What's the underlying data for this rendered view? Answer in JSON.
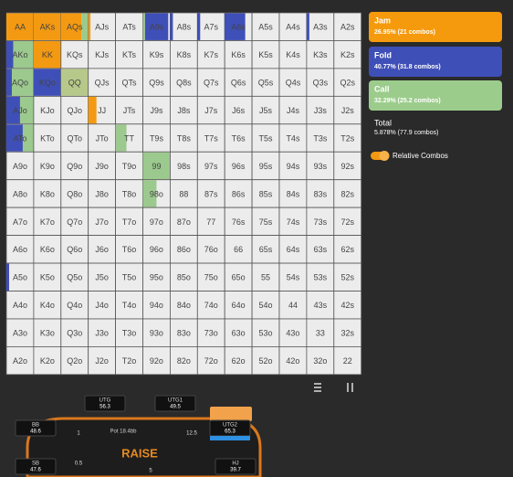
{
  "grid": {
    "rows": [
      [
        "AA",
        "AKs",
        "AQs",
        "AJs",
        "ATs",
        "A9s",
        "A8s",
        "A7s",
        "A6s",
        "A5s",
        "A4s",
        "A3s",
        "A2s"
      ],
      [
        "AKo",
        "KK",
        "KQs",
        "KJs",
        "KTs",
        "K9s",
        "K8s",
        "K7s",
        "K6s",
        "K5s",
        "K4s",
        "K3s",
        "K2s"
      ],
      [
        "AQo",
        "KQo",
        "QQ",
        "QJs",
        "QTs",
        "Q9s",
        "Q8s",
        "Q7s",
        "Q6s",
        "Q5s",
        "Q4s",
        "Q3s",
        "Q2s"
      ],
      [
        "AJo",
        "KJo",
        "QJo",
        "JJ",
        "JTs",
        "J9s",
        "J8s",
        "J7s",
        "J6s",
        "J5s",
        "J4s",
        "J3s",
        "J2s"
      ],
      [
        "ATo",
        "KTo",
        "QTo",
        "JTo",
        "TT",
        "T9s",
        "T8s",
        "T7s",
        "T6s",
        "T5s",
        "T4s",
        "T3s",
        "T2s"
      ],
      [
        "A9o",
        "K9o",
        "Q9o",
        "J9o",
        "T9o",
        "99",
        "98s",
        "97s",
        "96s",
        "95s",
        "94s",
        "93s",
        "92s"
      ],
      [
        "A8o",
        "K8o",
        "Q8o",
        "J8o",
        "T8o",
        "98o",
        "88",
        "87s",
        "86s",
        "85s",
        "84s",
        "83s",
        "82s"
      ],
      [
        "A7o",
        "K7o",
        "Q7o",
        "J7o",
        "T7o",
        "97o",
        "87o",
        "77",
        "76s",
        "75s",
        "74s",
        "73s",
        "72s"
      ],
      [
        "A6o",
        "K6o",
        "Q6o",
        "J6o",
        "T6o",
        "96o",
        "86o",
        "76o",
        "66",
        "65s",
        "64s",
        "63s",
        "62s"
      ],
      [
        "A5o",
        "K5o",
        "Q5o",
        "J5o",
        "T5o",
        "95o",
        "85o",
        "75o",
        "65o",
        "55",
        "54s",
        "53s",
        "52s"
      ],
      [
        "A4o",
        "K4o",
        "Q4o",
        "J4o",
        "T4o",
        "94o",
        "84o",
        "74o",
        "64o",
        "54o",
        "44",
        "43s",
        "42s"
      ],
      [
        "A3o",
        "K3o",
        "Q3o",
        "J3o",
        "T3o",
        "93o",
        "83o",
        "73o",
        "63o",
        "53o",
        "43o",
        "33",
        "32s"
      ],
      [
        "A2o",
        "K2o",
        "Q2o",
        "J2o",
        "T2o",
        "92o",
        "82o",
        "72o",
        "62o",
        "52o",
        "42o",
        "32o",
        "22"
      ]
    ]
  },
  "legend": [
    {
      "label": "Jam",
      "detail": "26.95% (21 combos)"
    },
    {
      "label": "Fold",
      "detail": "40.77% (31.8 combos)"
    },
    {
      "label": "Call",
      "detail": "32.29% (25.2 combos)"
    }
  ],
  "total": {
    "label": "Total",
    "detail": "5.878% (77.9 combos)"
  },
  "toggle": "Relative Combos",
  "table": {
    "pot": "Pot 18.4bb",
    "logo": "RAISE",
    "players": [
      {
        "position": "UTG",
        "stack": "56.3"
      },
      {
        "position": "UTG1",
        "stack": "49.5"
      },
      {
        "position": "BB",
        "stack": "48.6"
      },
      {
        "position": "UTG2",
        "stack": "65.3"
      },
      {
        "position": "SB",
        "stack": "47.6"
      },
      {
        "position": "HJ",
        "stack": "39.7"
      }
    ],
    "bets": [
      "1",
      "0.5",
      "12.5",
      "5"
    ]
  }
}
